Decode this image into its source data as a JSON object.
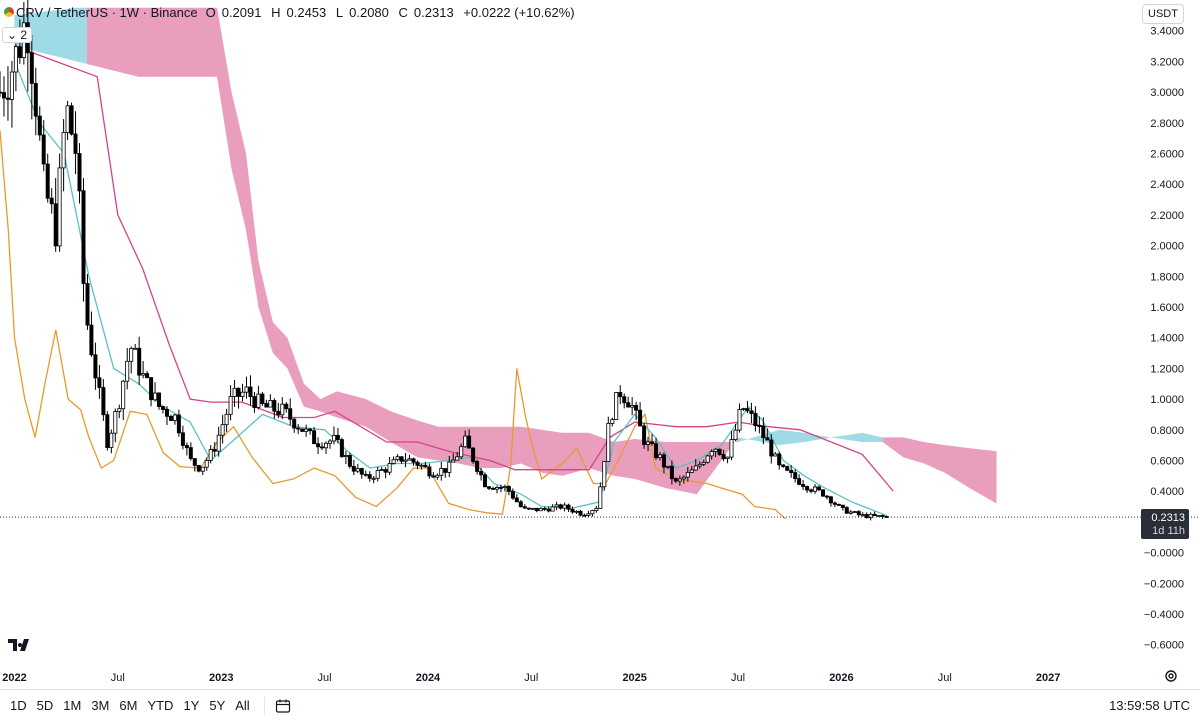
{
  "header": {
    "symbol": "CRV / TetherUS · 1W · Binance",
    "open_label": "O",
    "open": "0.2091",
    "high_label": "H",
    "high": "0.2453",
    "low_label": "L",
    "low": "0.2080",
    "close_label": "C",
    "close": "0.2313",
    "change": "+0.0222 (+10.62%)",
    "indicator_count": "2"
  },
  "currency": "USDT",
  "price_label": {
    "value": "0.2313",
    "countdown": "1d 11h"
  },
  "timeframes": [
    "1D",
    "5D",
    "1M",
    "3M",
    "6M",
    "YTD",
    "1Y",
    "5Y",
    "All"
  ],
  "clock": "13:59:58 UTC",
  "icons": {
    "logo": "tradingview-logo-icon",
    "calendar": "calendar-icon",
    "settings": "gear-icon"
  },
  "colors": {
    "up": "#ffffff",
    "down": "#000000",
    "conversion": "#5bc0c8",
    "base": "#d6428a",
    "lagging": "#e89a2e",
    "cloud_bull": "#8dd5e2",
    "cloud_bear": "#e48db0"
  },
  "chart_data": {
    "type": "candlestick",
    "ylim": [
      -0.7,
      3.6
    ],
    "yticks": [
      "3.4000",
      "3.2000",
      "3.0000",
      "2.8000",
      "2.6000",
      "2.4000",
      "2.2000",
      "2.0000",
      "1.8000",
      "1.6000",
      "1.4000",
      "1.2000",
      "1.0000",
      "0.8000",
      "0.6000",
      "0.4000",
      "−0.0000",
      "−0.2000",
      "−0.4000",
      "−0.6000"
    ],
    "ytick_values": [
      3.4,
      3.2,
      3.0,
      2.8,
      2.6,
      2.4,
      2.2,
      2.0,
      1.8,
      1.6,
      1.4,
      1.2,
      1.0,
      0.8,
      0.6,
      0.4,
      0.0,
      -0.2,
      -0.4,
      -0.6
    ],
    "xticks": [
      "2022",
      "Jul",
      "2023",
      "Jul",
      "2024",
      "Jul",
      "2025",
      "Jul",
      "2026",
      "Jul",
      "2027"
    ],
    "xtick_years": [
      2022.0,
      2022.5,
      2023.0,
      2023.5,
      2024.0,
      2024.5,
      2025.0,
      2025.5,
      2026.0,
      2026.5,
      2027.0
    ],
    "bold_xticks": [
      "2022",
      "2023",
      "2024",
      "2025",
      "2026",
      "2027"
    ],
    "xlim": [
      2021.93,
      2027.42
    ],
    "last_year": 2026.22,
    "close_anchors": [
      [
        2021.93,
        3.0
      ],
      [
        2022.0,
        3.2
      ],
      [
        2022.06,
        3.5
      ],
      [
        2022.1,
        3.0
      ],
      [
        2022.14,
        2.4
      ],
      [
        2022.2,
        2.1
      ],
      [
        2022.25,
        2.9
      ],
      [
        2022.3,
        2.6
      ],
      [
        2022.34,
        1.6
      ],
      [
        2022.4,
        1.1
      ],
      [
        2022.45,
        0.72
      ],
      [
        2022.5,
        0.95
      ],
      [
        2022.56,
        1.35
      ],
      [
        2022.62,
        1.15
      ],
      [
        2022.7,
        0.95
      ],
      [
        2022.78,
        0.88
      ],
      [
        2022.85,
        0.6
      ],
      [
        2022.9,
        0.55
      ],
      [
        2022.96,
        0.66
      ],
      [
        2023.05,
        1.0
      ],
      [
        2023.12,
        1.05
      ],
      [
        2023.2,
        0.95
      ],
      [
        2023.3,
        0.92
      ],
      [
        2023.38,
        0.82
      ],
      [
        2023.46,
        0.72
      ],
      [
        2023.55,
        0.73
      ],
      [
        2023.62,
        0.58
      ],
      [
        2023.7,
        0.48
      ],
      [
        2023.8,
        0.55
      ],
      [
        2023.88,
        0.62
      ],
      [
        2023.95,
        0.58
      ],
      [
        2024.02,
        0.52
      ],
      [
        2024.1,
        0.55
      ],
      [
        2024.18,
        0.72
      ],
      [
        2024.28,
        0.44
      ],
      [
        2024.38,
        0.42
      ],
      [
        2024.46,
        0.28
      ],
      [
        2024.55,
        0.28
      ],
      [
        2024.65,
        0.3
      ],
      [
        2024.75,
        0.25
      ],
      [
        2024.82,
        0.3
      ],
      [
        2024.88,
        0.88
      ],
      [
        2024.93,
        1.05
      ],
      [
        2024.98,
        0.98
      ],
      [
        2025.05,
        0.72
      ],
      [
        2025.12,
        0.62
      ],
      [
        2025.2,
        0.45
      ],
      [
        2025.3,
        0.55
      ],
      [
        2025.38,
        0.7
      ],
      [
        2025.45,
        0.62
      ],
      [
        2025.52,
        0.95
      ],
      [
        2025.58,
        0.85
      ],
      [
        2025.64,
        0.72
      ],
      [
        2025.7,
        0.55
      ],
      [
        2025.78,
        0.48
      ],
      [
        2025.85,
        0.42
      ],
      [
        2025.92,
        0.38
      ],
      [
        2026.0,
        0.28
      ],
      [
        2026.1,
        0.24
      ],
      [
        2026.22,
        0.2313
      ]
    ],
    "conversion_anchors": [
      [
        2022.0,
        3.2
      ],
      [
        2022.12,
        2.8
      ],
      [
        2022.24,
        2.6
      ],
      [
        2022.36,
        1.8
      ],
      [
        2022.48,
        1.2
      ],
      [
        2022.6,
        1.1
      ],
      [
        2022.72,
        0.95
      ],
      [
        2022.85,
        0.85
      ],
      [
        2022.95,
        0.6
      ],
      [
        2023.05,
        0.72
      ],
      [
        2023.2,
        0.9
      ],
      [
        2023.35,
        0.82
      ],
      [
        2023.5,
        0.8
      ],
      [
        2023.62,
        0.65
      ],
      [
        2023.72,
        0.55
      ],
      [
        2023.85,
        0.58
      ],
      [
        2023.97,
        0.58
      ],
      [
        2024.1,
        0.6
      ],
      [
        2024.2,
        0.62
      ],
      [
        2024.32,
        0.45
      ],
      [
        2024.45,
        0.38
      ],
      [
        2024.55,
        0.3
      ],
      [
        2024.7,
        0.29
      ],
      [
        2024.83,
        0.33
      ],
      [
        2024.9,
        0.72
      ],
      [
        2025.0,
        0.9
      ],
      [
        2025.1,
        0.75
      ],
      [
        2025.2,
        0.55
      ],
      [
        2025.3,
        0.6
      ],
      [
        2025.42,
        0.7
      ],
      [
        2025.55,
        0.95
      ],
      [
        2025.62,
        0.86
      ],
      [
        2025.72,
        0.6
      ],
      [
        2025.82,
        0.5
      ],
      [
        2025.92,
        0.42
      ],
      [
        2026.05,
        0.33
      ],
      [
        2026.22,
        0.24
      ]
    ],
    "base_anchors": [
      [
        2022.0,
        3.3
      ],
      [
        2022.2,
        3.2
      ],
      [
        2022.4,
        3.1
      ],
      [
        2022.5,
        2.2
      ],
      [
        2022.62,
        1.85
      ],
      [
        2022.75,
        1.35
      ],
      [
        2022.85,
        1.0
      ],
      [
        2022.95,
        0.98
      ],
      [
        2023.1,
        0.98
      ],
      [
        2023.3,
        0.88
      ],
      [
        2023.45,
        0.88
      ],
      [
        2023.55,
        0.92
      ],
      [
        2023.65,
        0.84
      ],
      [
        2023.8,
        0.72
      ],
      [
        2023.95,
        0.72
      ],
      [
        2024.1,
        0.66
      ],
      [
        2024.3,
        0.6
      ],
      [
        2024.42,
        0.54
      ],
      [
        2024.6,
        0.54
      ],
      [
        2024.78,
        0.54
      ],
      [
        2024.88,
        0.75
      ],
      [
        2025.0,
        0.85
      ],
      [
        2025.2,
        0.82
      ],
      [
        2025.35,
        0.82
      ],
      [
        2025.5,
        0.85
      ],
      [
        2025.65,
        0.82
      ],
      [
        2025.8,
        0.8
      ],
      [
        2025.95,
        0.72
      ],
      [
        2026.1,
        0.64
      ],
      [
        2026.22,
        0.45
      ],
      [
        2026.25,
        0.4
      ]
    ],
    "lagging_anchors": [
      [
        2021.93,
        2.75
      ],
      [
        2021.97,
        2.1
      ],
      [
        2022.0,
        1.4
      ],
      [
        2022.05,
        1.0
      ],
      [
        2022.1,
        0.75
      ],
      [
        2022.15,
        1.12
      ],
      [
        2022.2,
        1.45
      ],
      [
        2022.26,
        1.0
      ],
      [
        2022.32,
        0.93
      ],
      [
        2022.36,
        0.75
      ],
      [
        2022.42,
        0.55
      ],
      [
        2022.48,
        0.6
      ],
      [
        2022.56,
        0.92
      ],
      [
        2022.64,
        0.9
      ],
      [
        2022.72,
        0.65
      ],
      [
        2022.8,
        0.56
      ],
      [
        2022.9,
        0.55
      ],
      [
        2022.98,
        0.72
      ],
      [
        2023.06,
        0.82
      ],
      [
        2023.15,
        0.62
      ],
      [
        2023.25,
        0.45
      ],
      [
        2023.35,
        0.48
      ],
      [
        2023.45,
        0.55
      ],
      [
        2023.55,
        0.5
      ],
      [
        2023.65,
        0.36
      ],
      [
        2023.75,
        0.3
      ],
      [
        2023.85,
        0.42
      ],
      [
        2023.93,
        0.55
      ],
      [
        2024.0,
        0.55
      ],
      [
        2024.1,
        0.32
      ],
      [
        2024.2,
        0.28
      ],
      [
        2024.28,
        0.26
      ],
      [
        2024.36,
        0.25
      ],
      [
        2024.4,
        0.56
      ],
      [
        2024.43,
        1.2
      ],
      [
        2024.47,
        0.9
      ],
      [
        2024.5,
        0.72
      ],
      [
        2024.55,
        0.48
      ],
      [
        2024.65,
        0.58
      ],
      [
        2024.72,
        0.68
      ],
      [
        2024.8,
        0.45
      ],
      [
        2024.86,
        0.45
      ],
      [
        2024.92,
        0.6
      ],
      [
        2025.0,
        0.82
      ],
      [
        2025.05,
        0.9
      ],
      [
        2025.1,
        0.55
      ],
      [
        2025.2,
        0.48
      ],
      [
        2025.35,
        0.45
      ],
      [
        2025.42,
        0.42
      ],
      [
        2025.52,
        0.38
      ],
      [
        2025.58,
        0.3
      ],
      [
        2025.68,
        0.28
      ],
      [
        2025.73,
        0.22
      ]
    ],
    "cloud_upper_anchors": [
      [
        2022.0,
        3.5
      ],
      [
        2022.3,
        3.55
      ],
      [
        2022.6,
        3.55
      ],
      [
        2022.98,
        3.55
      ],
      [
        2023.05,
        3.0
      ],
      [
        2023.12,
        2.6
      ],
      [
        2023.18,
        1.9
      ],
      [
        2023.25,
        1.5
      ],
      [
        2023.32,
        1.4
      ],
      [
        2023.4,
        1.1
      ],
      [
        2023.48,
        1.0
      ],
      [
        2023.56,
        1.05
      ],
      [
        2023.7,
        1.0
      ],
      [
        2023.82,
        0.92
      ],
      [
        2023.95,
        0.86
      ],
      [
        2024.05,
        0.82
      ],
      [
        2024.15,
        0.82
      ],
      [
        2024.25,
        0.82
      ],
      [
        2024.35,
        0.82
      ],
      [
        2024.45,
        0.82
      ],
      [
        2024.55,
        0.8
      ],
      [
        2024.65,
        0.78
      ],
      [
        2024.78,
        0.78
      ],
      [
        2024.9,
        0.72
      ],
      [
        2025.0,
        0.74
      ],
      [
        2025.15,
        0.72
      ],
      [
        2025.3,
        0.72
      ],
      [
        2025.5,
        0.72
      ],
      [
        2025.7,
        0.8
      ],
      [
        2025.82,
        0.78
      ],
      [
        2025.95,
        0.75
      ],
      [
        2026.1,
        0.78
      ],
      [
        2026.2,
        0.75
      ],
      [
        2026.3,
        0.75
      ],
      [
        2026.4,
        0.72
      ],
      [
        2026.5,
        0.7
      ],
      [
        2026.62,
        0.68
      ],
      [
        2026.75,
        0.66
      ]
    ],
    "cloud_lower_anchors": [
      [
        2022.0,
        3.3
      ],
      [
        2022.3,
        3.2
      ],
      [
        2022.6,
        3.1
      ],
      [
        2022.98,
        3.1
      ],
      [
        2023.05,
        2.5
      ],
      [
        2023.12,
        2.1
      ],
      [
        2023.18,
        1.6
      ],
      [
        2023.25,
        1.3
      ],
      [
        2023.32,
        1.2
      ],
      [
        2023.4,
        0.95
      ],
      [
        2023.48,
        0.92
      ],
      [
        2023.56,
        0.88
      ],
      [
        2023.7,
        0.82
      ],
      [
        2023.82,
        0.72
      ],
      [
        2023.95,
        0.62
      ],
      [
        2024.05,
        0.6
      ],
      [
        2024.15,
        0.58
      ],
      [
        2024.25,
        0.55
      ],
      [
        2024.35,
        0.55
      ],
      [
        2024.45,
        0.58
      ],
      [
        2024.55,
        0.52
      ],
      [
        2024.65,
        0.5
      ],
      [
        2024.78,
        0.55
      ],
      [
        2024.9,
        0.5
      ],
      [
        2025.0,
        0.48
      ],
      [
        2025.15,
        0.42
      ],
      [
        2025.3,
        0.38
      ],
      [
        2025.5,
        0.75
      ],
      [
        2025.7,
        0.7
      ],
      [
        2025.82,
        0.72
      ],
      [
        2025.95,
        0.75
      ],
      [
        2026.1,
        0.72
      ],
      [
        2026.2,
        0.72
      ],
      [
        2026.3,
        0.62
      ],
      [
        2026.4,
        0.58
      ],
      [
        2026.5,
        0.52
      ],
      [
        2026.62,
        0.42
      ],
      [
        2026.75,
        0.32
      ]
    ]
  }
}
